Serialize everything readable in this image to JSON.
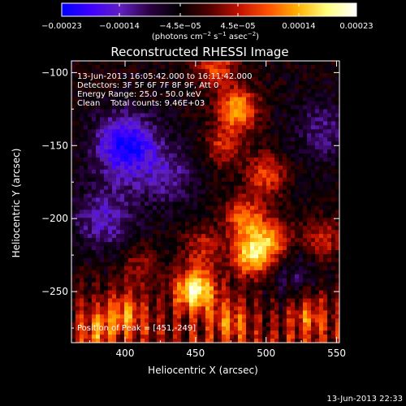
{
  "chart_data": {
    "type": "heatmap",
    "title": "Reconstructed RHESSI Image",
    "xlabel": "Heliocentric X (arcsec)",
    "ylabel": "Heliocentric Y (arcsec)",
    "xlim": [
      362,
      552
    ],
    "ylim": [
      -285,
      -92
    ],
    "x_ticks": [
      {
        "value": 400,
        "label": "400"
      },
      {
        "value": 450,
        "label": "450"
      },
      {
        "value": 500,
        "label": "500"
      },
      {
        "value": 550,
        "label": "550"
      }
    ],
    "y_ticks": [
      {
        "value": -100,
        "label": "−100"
      },
      {
        "value": -150,
        "label": "−150"
      },
      {
        "value": -200,
        "label": "−200"
      },
      {
        "value": -250,
        "label": "−250"
      }
    ],
    "annotations": [
      "13-Jun-2013 16:05:42.000 to 16:11:42.000",
      "Detectors: 3F 5F 6F 7F 8F 9F, Att 0",
      "Energy Range: 25.0 - 50.0 keV",
      "Clean    Total counts: 9.46E+03"
    ],
    "peak_label": "Position of Peak = [451,-249]",
    "peak": {
      "x": 451,
      "y": -249
    },
    "colorbar": {
      "range": [
        -0.00023,
        0.00023
      ],
      "ticks": [
        {
          "value": -0.00023,
          "label": "−0.00023"
        },
        {
          "value": -0.00014,
          "label": "−0.00014"
        },
        {
          "value": -4.5e-05,
          "label": "−4.5e−05"
        },
        {
          "value": 4.5e-05,
          "label": "4.5e−05"
        },
        {
          "value": 0.00014,
          "label": "0.00014"
        },
        {
          "value": 0.00023,
          "label": "0.00023"
        }
      ],
      "units_prefix": "(photons cm",
      "units_exp1": "−2",
      "units_mid1": " s",
      "units_exp2": "−1",
      "units_mid2": " asec",
      "units_exp3": "−2",
      "units_suffix": ")"
    },
    "colormap": [
      "#0000ff",
      "#4000ff",
      "#6020c0",
      "#2a0040",
      "#000000",
      "#500000",
      "#c01000",
      "#ff5000",
      "#ffb000",
      "#ffff80",
      "#ffffff"
    ],
    "bright_regions": [
      {
        "x": 465,
        "y": -95,
        "value": 0.00012
      },
      {
        "x": 480,
        "y": -125,
        "value": 0.00018
      },
      {
        "x": 470,
        "y": -150,
        "value": 0.0001
      },
      {
        "x": 500,
        "y": -170,
        "value": 0.00012
      },
      {
        "x": 485,
        "y": -200,
        "value": 0.00015
      },
      {
        "x": 490,
        "y": -225,
        "value": 0.0002
      },
      {
        "x": 505,
        "y": -215,
        "value": 0.00014
      },
      {
        "x": 455,
        "y": -220,
        "value": 9e-05
      },
      {
        "x": 540,
        "y": -215,
        "value": 0.0001
      },
      {
        "x": 450,
        "y": -249,
        "value": 0.00023
      },
      {
        "x": 400,
        "y": -265,
        "value": 0.00011
      },
      {
        "x": 380,
        "y": -275,
        "value": 8e-05
      },
      {
        "x": 530,
        "y": -265,
        "value": 0.0001
      },
      {
        "x": 410,
        "y": -230,
        "value": 6e-05
      },
      {
        "x": 475,
        "y": -270,
        "value": 9e-05
      }
    ],
    "dark_regions": [
      {
        "x": 400,
        "y": -150,
        "value": -0.00018
      },
      {
        "x": 385,
        "y": -200,
        "value": -0.0001
      },
      {
        "x": 430,
        "y": -170,
        "value": -8e-05
      },
      {
        "x": 540,
        "y": -140,
        "value": -7e-05
      },
      {
        "x": 520,
        "y": -240,
        "value": -6e-05
      }
    ]
  },
  "footer": {
    "timestamp": "13-Jun-2013 22:33"
  }
}
